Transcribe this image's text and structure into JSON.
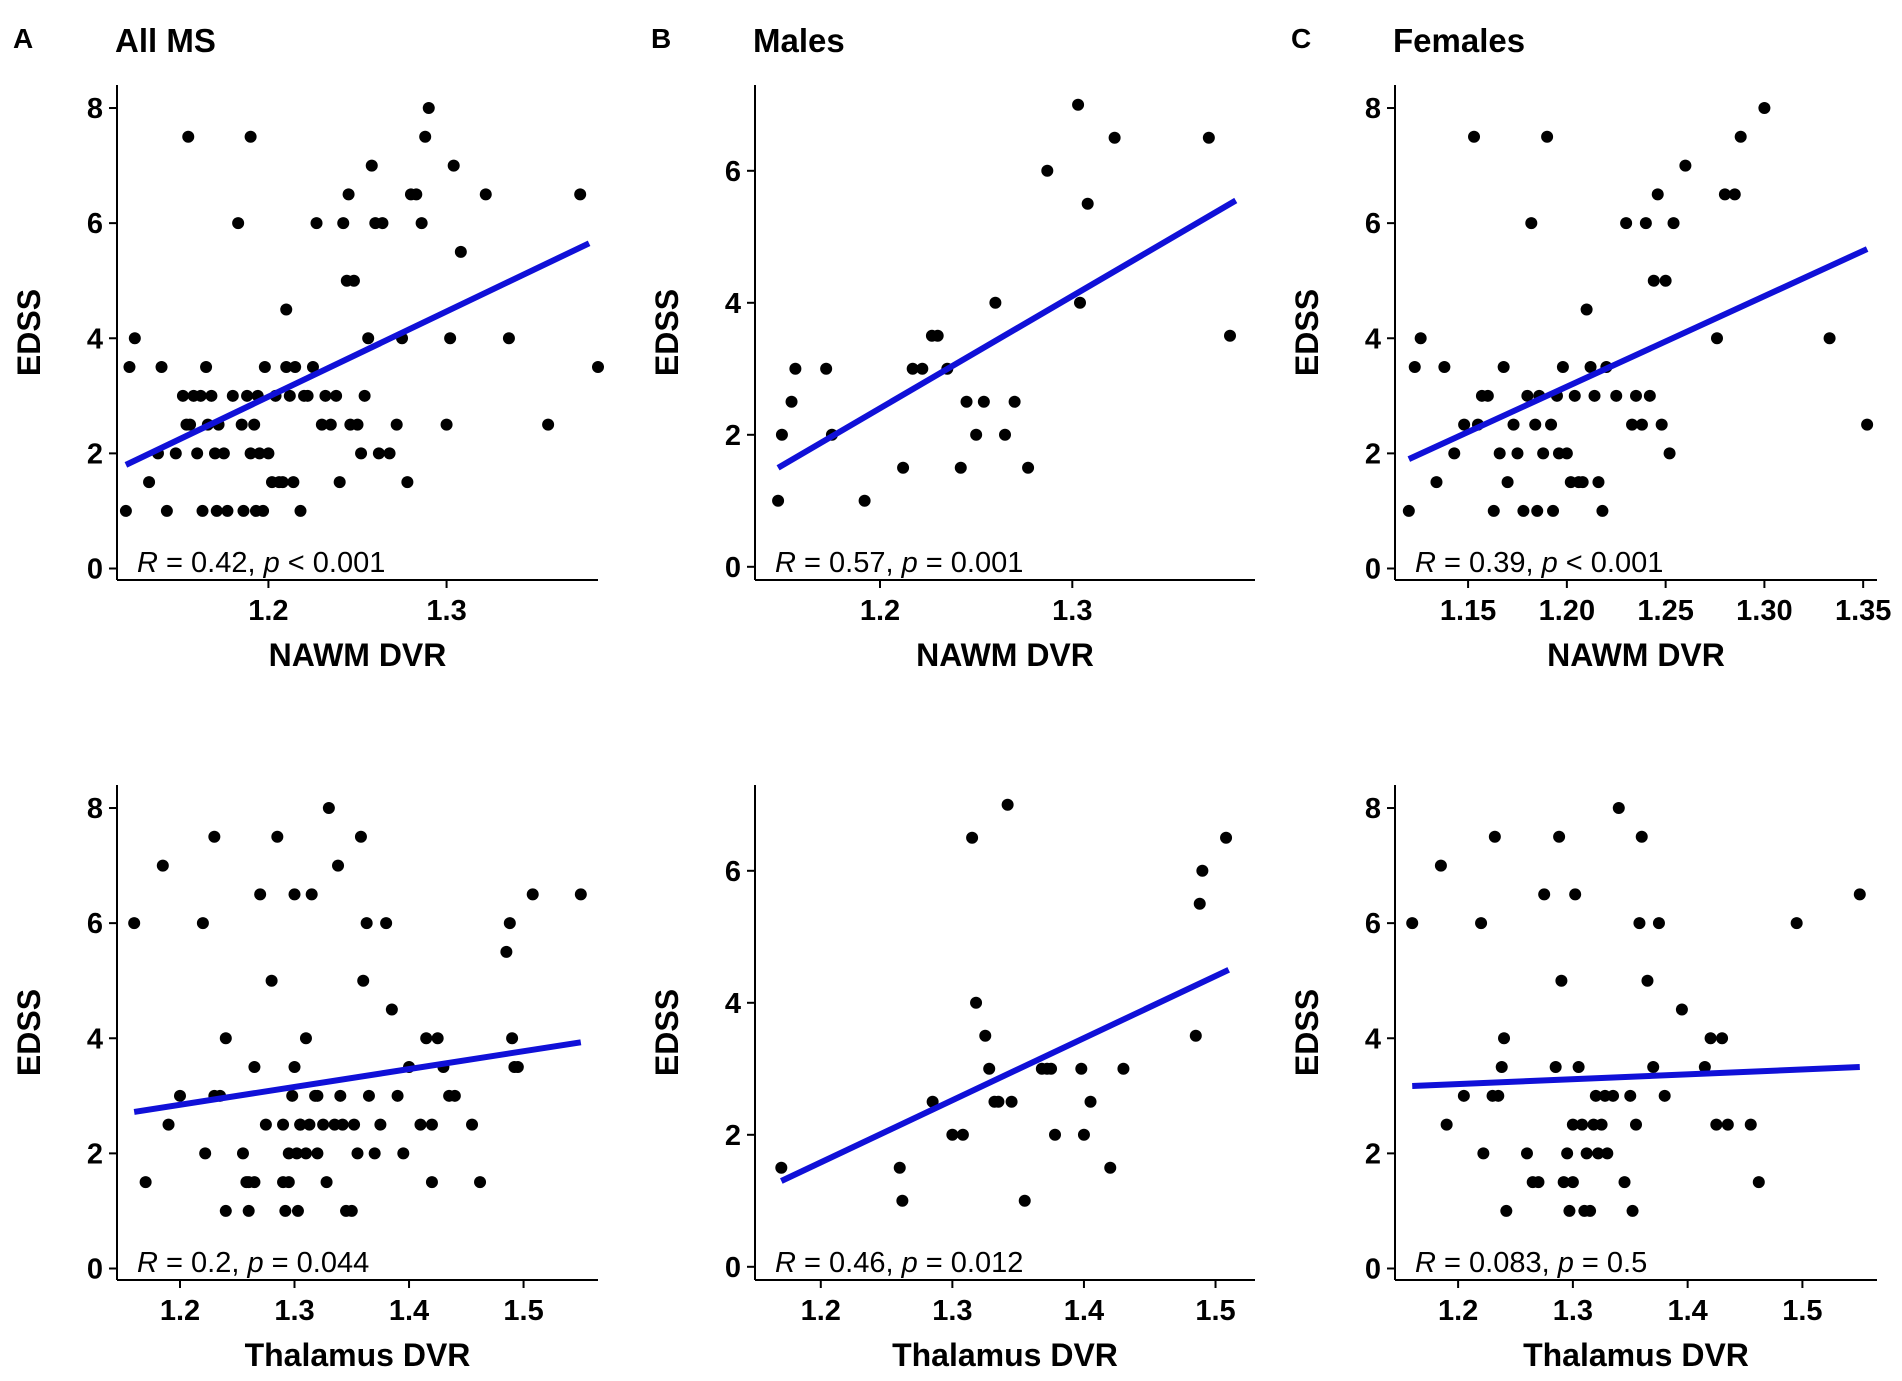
{
  "colors": {
    "points": "#000000",
    "fit": "#1010d8",
    "axis": "#000000"
  },
  "chart_data": [
    {
      "type": "scatter",
      "letter": "A",
      "title": "All MS",
      "xlabel": "NAWM DVR",
      "ylabel": "EDSS",
      "xlim": [
        1.115,
        1.385
      ],
      "ylim": [
        -0.2,
        8.4
      ],
      "xticks": [
        1.2,
        1.3
      ],
      "xtick_labels": [
        "1.2",
        "1.3"
      ],
      "yticks": [
        0,
        2,
        4,
        6,
        8
      ],
      "ytick_labels": [
        "0",
        "2",
        "4",
        "6",
        "8"
      ],
      "fit": {
        "x": [
          1.12,
          1.38
        ],
        "y": [
          1.8,
          5.65
        ]
      },
      "stat": {
        "r_sym": "R",
        "r_val": " = 0.42, ",
        "p_sym": "p",
        "p_val": " < 0.001"
      },
      "points": {
        "x": [
          1.12,
          1.122,
          1.125,
          1.133,
          1.138,
          1.14,
          1.143,
          1.148,
          1.152,
          1.154,
          1.155,
          1.156,
          1.158,
          1.16,
          1.162,
          1.163,
          1.165,
          1.166,
          1.168,
          1.17,
          1.171,
          1.172,
          1.175,
          1.177,
          1.18,
          1.183,
          1.185,
          1.186,
          1.188,
          1.19,
          1.19,
          1.192,
          1.193,
          1.194,
          1.195,
          1.197,
          1.198,
          1.2,
          1.202,
          1.204,
          1.206,
          1.208,
          1.21,
          1.21,
          1.212,
          1.214,
          1.215,
          1.218,
          1.22,
          1.222,
          1.225,
          1.227,
          1.23,
          1.232,
          1.235,
          1.238,
          1.24,
          1.242,
          1.244,
          1.245,
          1.246,
          1.248,
          1.25,
          1.252,
          1.254,
          1.256,
          1.258,
          1.26,
          1.262,
          1.264,
          1.268,
          1.272,
          1.275,
          1.278,
          1.28,
          1.283,
          1.286,
          1.288,
          1.29,
          1.3,
          1.302,
          1.304,
          1.308,
          1.322,
          1.335,
          1.357,
          1.375,
          1.385
        ],
        "y": [
          1,
          3.5,
          4,
          1.5,
          2,
          3.5,
          1,
          2,
          3,
          2.5,
          7.5,
          2.5,
          3,
          2,
          3,
          1,
          3.5,
          2.5,
          3,
          2,
          1,
          2.5,
          2,
          1,
          3,
          6,
          2.5,
          1,
          3,
          2,
          7.5,
          2.5,
          1,
          3,
          2,
          1,
          3.5,
          2,
          1.5,
          3,
          1.5,
          1.5,
          4.5,
          3.5,
          3,
          1.5,
          3.5,
          1,
          3,
          3,
          3.5,
          6,
          2.5,
          3,
          2.5,
          3,
          1.5,
          6,
          5,
          6.5,
          2.5,
          5,
          2.5,
          2,
          3,
          4,
          7,
          6,
          2,
          6,
          2,
          2.5,
          4,
          1.5,
          6.5,
          6.5,
          6,
          7.5,
          8,
          2.5,
          4,
          7,
          5.5,
          6.5,
          4,
          2.5,
          6.5,
          3.5
        ]
      }
    },
    {
      "type": "scatter",
      "letter": "B",
      "title": "Males",
      "xlabel": "NAWM DVR",
      "ylabel": "EDSS",
      "xlim": [
        1.135,
        1.395
      ],
      "ylim": [
        -0.2,
        7.3
      ],
      "xticks": [
        1.2,
        1.3
      ],
      "xtick_labels": [
        "1.2",
        "1.3"
      ],
      "yticks": [
        0,
        2,
        4,
        6
      ],
      "ytick_labels": [
        "0",
        "2",
        "4",
        "6"
      ],
      "fit": {
        "x": [
          1.147,
          1.385
        ],
        "y": [
          1.5,
          5.55
        ]
      },
      "stat": {
        "r_sym": "R",
        "r_val": " = 0.57, ",
        "p_sym": "p",
        "p_val": " = 0.001"
      },
      "points": {
        "x": [
          1.147,
          1.149,
          1.154,
          1.156,
          1.172,
          1.175,
          1.192,
          1.212,
          1.217,
          1.222,
          1.227,
          1.23,
          1.235,
          1.242,
          1.245,
          1.25,
          1.254,
          1.26,
          1.265,
          1.27,
          1.277,
          1.287,
          1.303,
          1.304,
          1.308,
          1.322,
          1.371,
          1.382
        ],
        "y": [
          1,
          2,
          2.5,
          3,
          3,
          2,
          1,
          1.5,
          3,
          3,
          3.5,
          3.5,
          3,
          1.5,
          2.5,
          2,
          2.5,
          4,
          2,
          2.5,
          1.5,
          6,
          7,
          4,
          5.5,
          6.5,
          6.5,
          3.5
        ]
      }
    },
    {
      "type": "scatter",
      "letter": "C",
      "title": "Females",
      "xlabel": "NAWM DVR",
      "ylabel": "EDSS",
      "xlim": [
        1.113,
        1.357
      ],
      "ylim": [
        -0.2,
        8.4
      ],
      "xticks": [
        1.15,
        1.2,
        1.25,
        1.3,
        1.35
      ],
      "xtick_labels": [
        "1.15",
        "1.20",
        "1.25",
        "1.30",
        "1.35"
      ],
      "yticks": [
        0,
        2,
        4,
        6,
        8
      ],
      "ytick_labels": [
        "0",
        "2",
        "4",
        "6",
        "8"
      ],
      "fit": {
        "x": [
          1.12,
          1.352
        ],
        "y": [
          1.9,
          5.55
        ]
      },
      "stat": {
        "r_sym": "R",
        "r_val": " = 0.39, ",
        "p_sym": "p",
        "p_val": " < 0.001"
      },
      "points": {
        "x": [
          1.12,
          1.123,
          1.126,
          1.134,
          1.138,
          1.143,
          1.148,
          1.153,
          1.155,
          1.157,
          1.16,
          1.163,
          1.166,
          1.168,
          1.17,
          1.173,
          1.175,
          1.178,
          1.18,
          1.182,
          1.184,
          1.185,
          1.186,
          1.188,
          1.19,
          1.192,
          1.193,
          1.195,
          1.196,
          1.198,
          1.2,
          1.202,
          1.204,
          1.206,
          1.208,
          1.21,
          1.212,
          1.214,
          1.216,
          1.218,
          1.22,
          1.225,
          1.23,
          1.233,
          1.235,
          1.238,
          1.24,
          1.242,
          1.244,
          1.246,
          1.248,
          1.25,
          1.252,
          1.254,
          1.26,
          1.276,
          1.28,
          1.285,
          1.288,
          1.3,
          1.333,
          1.352
        ],
        "y": [
          1,
          3.5,
          4,
          1.5,
          3.5,
          2,
          2.5,
          7.5,
          2.5,
          3,
          3,
          1,
          2,
          3.5,
          1.5,
          2.5,
          2,
          1,
          3,
          6,
          2.5,
          1,
          3,
          2,
          7.5,
          2.5,
          1,
          3,
          2,
          3.5,
          2,
          1.5,
          3,
          1.5,
          1.5,
          4.5,
          3.5,
          3,
          1.5,
          1,
          3.5,
          3,
          6,
          2.5,
          3,
          2.5,
          6,
          3,
          5,
          6.5,
          2.5,
          5,
          2,
          6,
          7,
          4,
          6.5,
          6.5,
          7.5,
          8,
          4,
          2.5
        ]
      }
    },
    {
      "type": "scatter",
      "letter": "",
      "title": "",
      "xlabel": "Thalamus DVR",
      "ylabel": "EDSS",
      "xlim": [
        1.145,
        1.565
      ],
      "ylim": [
        -0.2,
        8.4
      ],
      "xticks": [
        1.2,
        1.3,
        1.4,
        1.5
      ],
      "xtick_labels": [
        "1.2",
        "1.3",
        "1.4",
        "1.5"
      ],
      "yticks": [
        0,
        2,
        4,
        6,
        8
      ],
      "ytick_labels": [
        "0",
        "2",
        "4",
        "6",
        "8"
      ],
      "fit": {
        "x": [
          1.16,
          1.55
        ],
        "y": [
          2.72,
          3.93
        ]
      },
      "stat": {
        "r_sym": "R",
        "r_val": " = 0.2, ",
        "p_sym": "p",
        "p_val": " = 0.044"
      },
      "points": {
        "x": [
          1.16,
          1.17,
          1.185,
          1.19,
          1.2,
          1.22,
          1.222,
          1.23,
          1.23,
          1.235,
          1.24,
          1.24,
          1.255,
          1.258,
          1.26,
          1.26,
          1.265,
          1.265,
          1.27,
          1.275,
          1.28,
          1.285,
          1.29,
          1.29,
          1.292,
          1.295,
          1.295,
          1.298,
          1.3,
          1.3,
          1.302,
          1.303,
          1.305,
          1.305,
          1.31,
          1.31,
          1.313,
          1.315,
          1.318,
          1.32,
          1.32,
          1.325,
          1.328,
          1.33,
          1.335,
          1.338,
          1.34,
          1.342,
          1.345,
          1.35,
          1.352,
          1.355,
          1.358,
          1.36,
          1.363,
          1.365,
          1.37,
          1.375,
          1.38,
          1.385,
          1.39,
          1.395,
          1.4,
          1.41,
          1.415,
          1.42,
          1.42,
          1.425,
          1.43,
          1.435,
          1.44,
          1.455,
          1.462,
          1.485,
          1.488,
          1.49,
          1.492,
          1.495,
          1.508,
          1.55
        ],
        "y": [
          6,
          1.5,
          7,
          2.5,
          3,
          6,
          2,
          3,
          7.5,
          3,
          4,
          1,
          2,
          1.5,
          1.5,
          1,
          1.5,
          3.5,
          6.5,
          2.5,
          5,
          7.5,
          1.5,
          2.5,
          1,
          2,
          1.5,
          3,
          3.5,
          6.5,
          2,
          1,
          2.5,
          2.5,
          4,
          2,
          2.5,
          6.5,
          3,
          3,
          2,
          2.5,
          1.5,
          8,
          2.5,
          7,
          3,
          2.5,
          1,
          1,
          2.5,
          2,
          7.5,
          5,
          6,
          3,
          2,
          2.5,
          6,
          4.5,
          3,
          2,
          3.5,
          2.5,
          4,
          1.5,
          2.5,
          4,
          3.5,
          3,
          3,
          2.5,
          1.5,
          5.5,
          6,
          4,
          3.5,
          3.5,
          6.5,
          6.5
        ]
      }
    },
    {
      "type": "scatter",
      "letter": "",
      "title": "",
      "xlabel": "Thalamus DVR",
      "ylabel": "EDSS",
      "xlim": [
        1.15,
        1.53
      ],
      "ylim": [
        -0.2,
        7.3
      ],
      "xticks": [
        1.2,
        1.3,
        1.4,
        1.5
      ],
      "xtick_labels": [
        "1.2",
        "1.3",
        "1.4",
        "1.5"
      ],
      "yticks": [
        0,
        2,
        4,
        6
      ],
      "ytick_labels": [
        "0",
        "2",
        "4",
        "6"
      ],
      "fit": {
        "x": [
          1.17,
          1.51
        ],
        "y": [
          1.3,
          4.5
        ]
      },
      "stat": {
        "r_sym": "R",
        "r_val": " = 0.46, ",
        "p_sym": "p",
        "p_val": " = 0.012"
      },
      "points": {
        "x": [
          1.17,
          1.26,
          1.262,
          1.285,
          1.3,
          1.308,
          1.315,
          1.318,
          1.325,
          1.328,
          1.332,
          1.335,
          1.342,
          1.345,
          1.355,
          1.368,
          1.372,
          1.375,
          1.378,
          1.398,
          1.4,
          1.405,
          1.42,
          1.43,
          1.485,
          1.488,
          1.49,
          1.508
        ],
        "y": [
          1.5,
          1.5,
          1,
          2.5,
          2,
          2,
          6.5,
          4,
          3.5,
          3,
          2.5,
          2.5,
          7,
          2.5,
          1,
          3,
          3,
          3,
          2,
          3,
          2,
          2.5,
          1.5,
          3,
          3.5,
          5.5,
          6,
          6.5
        ]
      }
    },
    {
      "type": "scatter",
      "letter": "",
      "title": "",
      "xlabel": "Thalamus DVR",
      "ylabel": "EDSS",
      "xlim": [
        1.145,
        1.565
      ],
      "ylim": [
        -0.2,
        8.4
      ],
      "xticks": [
        1.2,
        1.3,
        1.4,
        1.5
      ],
      "xtick_labels": [
        "1.2",
        "1.3",
        "1.4",
        "1.5"
      ],
      "yticks": [
        0,
        2,
        4,
        6,
        8
      ],
      "ytick_labels": [
        "0",
        "2",
        "4",
        "6",
        "8"
      ],
      "fit": {
        "x": [
          1.16,
          1.55
        ],
        "y": [
          3.17,
          3.5
        ]
      },
      "stat": {
        "r_sym": "R",
        "r_val": " = 0.083, ",
        "p_sym": "p",
        "p_val": " = 0.5"
      },
      "points": {
        "x": [
          1.16,
          1.185,
          1.19,
          1.205,
          1.22,
          1.222,
          1.23,
          1.232,
          1.235,
          1.238,
          1.24,
          1.242,
          1.26,
          1.265,
          1.27,
          1.275,
          1.285,
          1.288,
          1.29,
          1.292,
          1.295,
          1.297,
          1.3,
          1.3,
          1.302,
          1.305,
          1.308,
          1.31,
          1.312,
          1.315,
          1.318,
          1.32,
          1.322,
          1.325,
          1.328,
          1.33,
          1.335,
          1.34,
          1.345,
          1.35,
          1.352,
          1.355,
          1.358,
          1.36,
          1.365,
          1.37,
          1.375,
          1.38,
          1.395,
          1.415,
          1.42,
          1.425,
          1.43,
          1.435,
          1.455,
          1.462,
          1.495,
          1.55
        ],
        "y": [
          6,
          7,
          2.5,
          3,
          6,
          2,
          3,
          7.5,
          3,
          3.5,
          4,
          1,
          2,
          1.5,
          1.5,
          6.5,
          3.5,
          7.5,
          5,
          1.5,
          2,
          1,
          2.5,
          1.5,
          6.5,
          3.5,
          2.5,
          1,
          2,
          1,
          2.5,
          3,
          2,
          2.5,
          3,
          2,
          3,
          8,
          1.5,
          3,
          1,
          2.5,
          6,
          7.5,
          5,
          3.5,
          6,
          3,
          4.5,
          3.5,
          4,
          2.5,
          4,
          2.5,
          2.5,
          1.5,
          6,
          6.5
        ]
      }
    }
  ]
}
